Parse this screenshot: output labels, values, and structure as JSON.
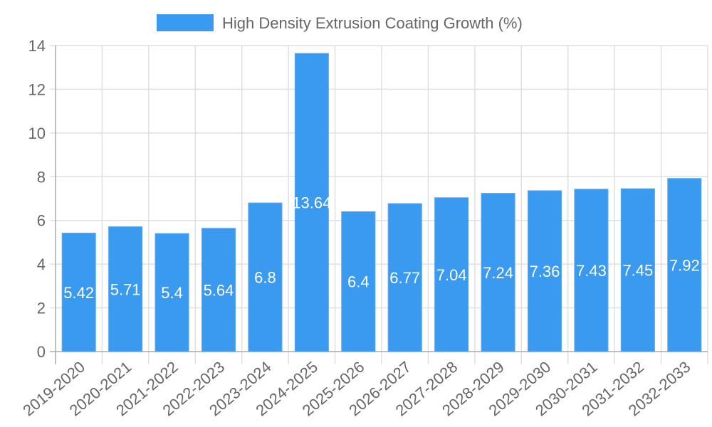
{
  "chart_data": {
    "type": "bar",
    "title": "",
    "xlabel": "",
    "ylabel": "",
    "legend": {
      "label": "High Density Extrusion Coating Growth (%)",
      "placement": "top-center"
    },
    "categories": [
      "2019-2020",
      "2020-2021",
      "2021-2022",
      "2022-2023",
      "2023-2024",
      "2024-2025",
      "2025-2026",
      "2026-2027",
      "2027-2028",
      "2028-2029",
      "2029-2030",
      "2030-2031",
      "2031-2032",
      "2032-2033"
    ],
    "series": [
      {
        "name": "High Density Extrusion Coating Growth (%)",
        "values": [
          5.42,
          5.71,
          5.4,
          5.64,
          6.8,
          13.64,
          6.4,
          6.77,
          7.04,
          7.24,
          7.36,
          7.43,
          7.45,
          7.92
        ],
        "labels": [
          "5.42",
          "5.71",
          "5.4",
          "5.64",
          "6.8",
          "13.64",
          "6.4",
          "6.77",
          "7.04",
          "7.24",
          "7.36",
          "7.43",
          "7.45",
          "7.92"
        ],
        "color": "#3a9af0"
      }
    ],
    "ylim": [
      0,
      14
    ],
    "yticks": [
      "0",
      "2",
      "4",
      "6",
      "8",
      "10",
      "12",
      "14"
    ],
    "grid": true
  }
}
